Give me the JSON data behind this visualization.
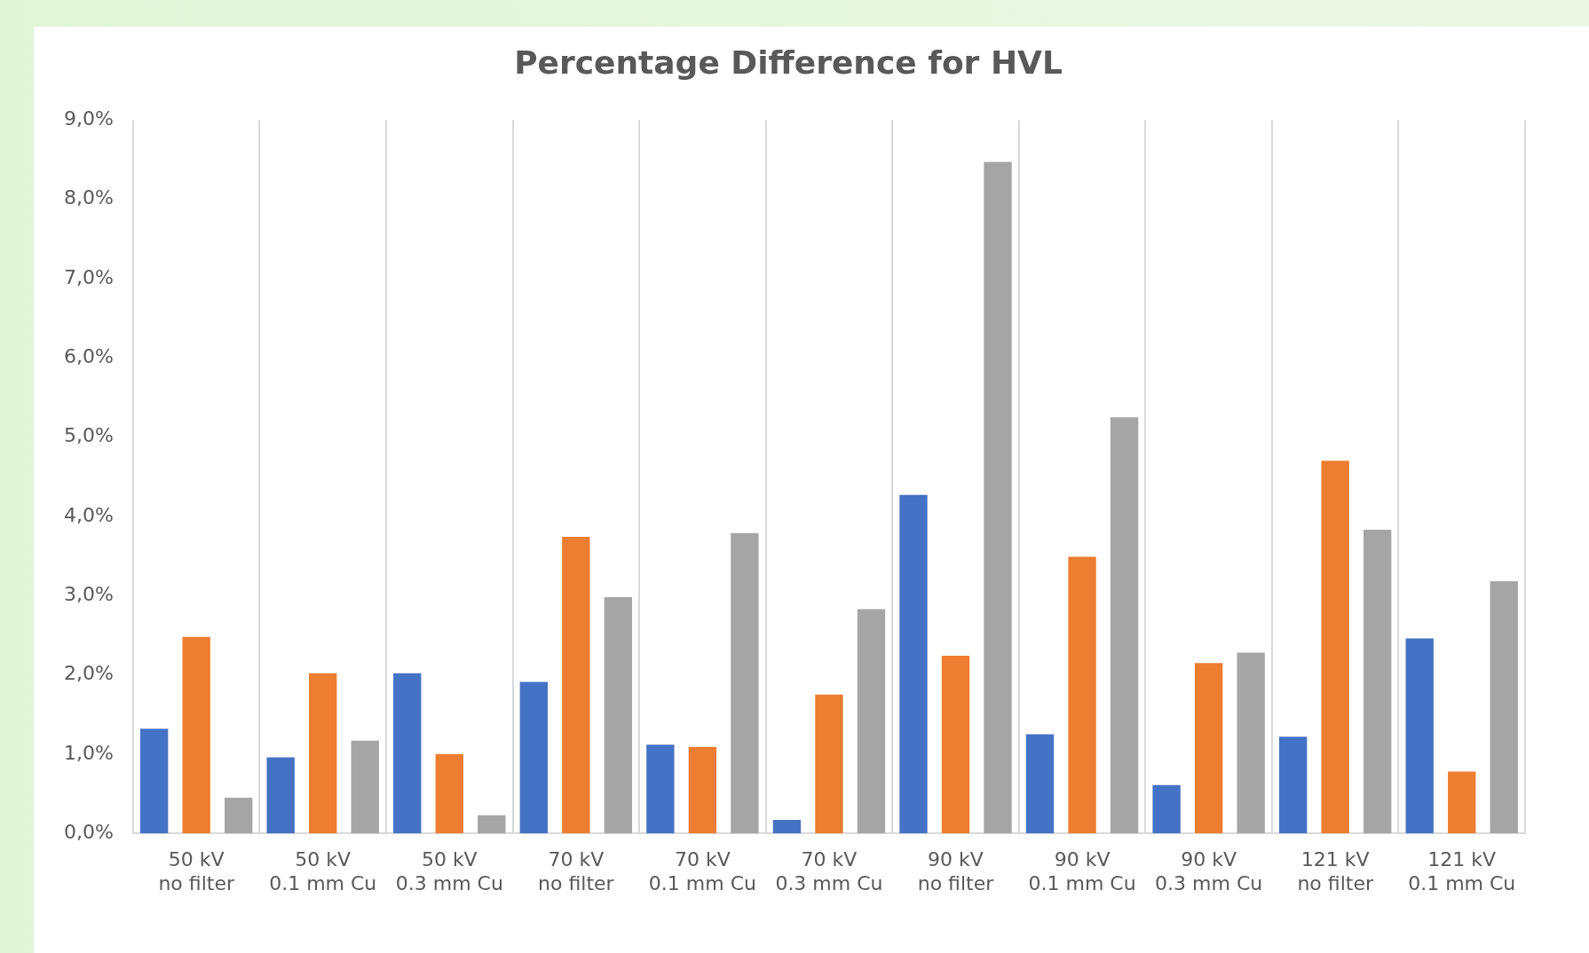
{
  "chart_data": {
    "type": "bar",
    "title": "Percentage Difference for HVL",
    "categories": [
      "50 kV\nno filter",
      "50 kV\n0.1 mm Cu",
      "50 kV\n0.3 mm Cu",
      "70 kV\nno filter",
      "70 kV\n0.1 mm Cu",
      "70 kV\n0.3 mm Cu",
      "90 kV\nno filter",
      "90 kV\n0.1 mm Cu",
      "90 kV\n0.3 mm Cu",
      "121 kV\nno filter",
      "121 kV\n0.1 mm Cu"
    ],
    "series": [
      {
        "color": "#4472c4",
        "values": [
          1.32,
          0.96,
          2.02,
          1.91,
          1.12,
          0.17,
          4.27,
          1.25,
          0.61,
          1.22,
          2.46
        ]
      },
      {
        "color": "#ed7d31",
        "values": [
          2.48,
          2.02,
          1.0,
          3.74,
          1.09,
          1.75,
          2.24,
          3.49,
          2.15,
          4.7,
          0.78
        ]
      },
      {
        "color": "#a5a5a5",
        "values": [
          0.45,
          1.17,
          0.23,
          2.98,
          3.79,
          2.83,
          8.47,
          5.25,
          2.28,
          3.83,
          3.18
        ]
      }
    ],
    "ylim": [
      0,
      9
    ],
    "yticks": [
      {
        "value": 0,
        "label": "0,0%"
      },
      {
        "value": 1,
        "label": "1,0%"
      },
      {
        "value": 2,
        "label": "2,0%"
      },
      {
        "value": 3,
        "label": "3,0%"
      },
      {
        "value": 4,
        "label": "4,0%"
      },
      {
        "value": 5,
        "label": "5,0%"
      },
      {
        "value": 6,
        "label": "6,0%"
      },
      {
        "value": 7,
        "label": "7,0%"
      },
      {
        "value": 8,
        "label": "8,0%"
      },
      {
        "value": 9,
        "label": "9,0%"
      }
    ],
    "grid": "x"
  }
}
